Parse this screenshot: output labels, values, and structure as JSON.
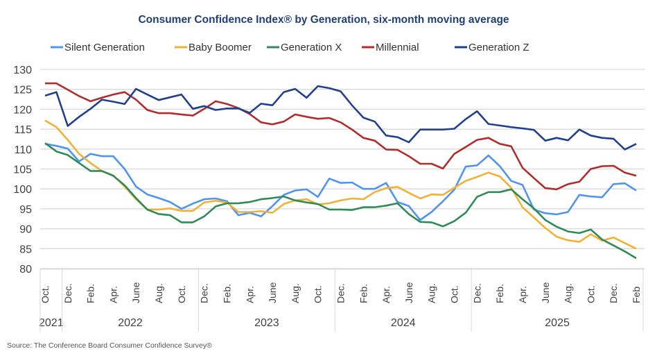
{
  "chart_data": {
    "type": "line",
    "title": "Consumer Confidence Index® by Generation, six-month moving average",
    "xlabel": "",
    "ylabel": "",
    "ylim": [
      80,
      130
    ],
    "yticks": [
      80,
      85,
      90,
      95,
      100,
      105,
      110,
      115,
      120,
      125,
      130
    ],
    "grid": true,
    "legend_position": "top",
    "x_tick_labels": [
      "Oct.",
      "Dec.",
      "Feb.",
      "Apr.",
      "June",
      "Aug.",
      "Oct.",
      "Dec.",
      "Feb.",
      "Apr.",
      "June",
      "Aug.",
      "Oct.",
      "Dec.",
      "Feb.",
      "Apr.",
      "June",
      "Aug.",
      "Oct.",
      "Dec.",
      "Feb.",
      "Apr.",
      "June",
      "Aug.",
      "Oct.",
      "Dec.",
      "Feb"
    ],
    "year_groups": [
      {
        "label": "2021",
        "start": 0,
        "end": 1
      },
      {
        "label": "2022",
        "start": 2,
        "end": 13
      },
      {
        "label": "2023",
        "start": 14,
        "end": 25
      },
      {
        "label": "2024",
        "start": 26,
        "end": 37
      },
      {
        "label": "2025",
        "start": 38,
        "end": 52
      }
    ],
    "series": [
      {
        "name": "Silent Generation",
        "color": "#4f94f0",
        "values": [
          111.3,
          110.8,
          110.1,
          106.9,
          108.8,
          108.2,
          108.2,
          105.0,
          100.6,
          98.6,
          97.7,
          96.7,
          95.0,
          96.3,
          97.4,
          97.6,
          96.9,
          93.4,
          94.0,
          93.1,
          95.7,
          98.5,
          99.6,
          99.9,
          98.0,
          102.6,
          101.5,
          101.6,
          100.0,
          100.0,
          101.5,
          96.7,
          95.7,
          92.2,
          94.2,
          96.9,
          99.8,
          105.6,
          105.9,
          108.4,
          105.7,
          102.0,
          101.0,
          94.8,
          93.9,
          93.6,
          94.2,
          98.5,
          98.1,
          97.9,
          101.2,
          101.4,
          99.6
        ]
      },
      {
        "name": "Baby Boomer",
        "color": "#f2b134",
        "values": [
          117.2,
          115.5,
          112.3,
          108.8,
          106.5,
          104.5,
          103.4,
          100.6,
          97.4,
          94.8,
          94.8,
          95.1,
          94.5,
          94.5,
          96.6,
          97.0,
          96.6,
          94.2,
          94.2,
          94.4,
          94.0,
          96.2,
          97.1,
          97.4,
          96.1,
          96.4,
          97.1,
          97.6,
          97.4,
          99.2,
          100.2,
          100.5,
          99.0,
          97.6,
          98.6,
          98.5,
          100.3,
          102.0,
          103.0,
          104.1,
          103.1,
          100.3,
          95.4,
          92.8,
          90.2,
          88.0,
          87.1,
          86.7,
          88.6,
          87.0,
          87.8,
          86.4,
          85.0
        ]
      },
      {
        "name": "Generation X",
        "color": "#2e8b57",
        "values": [
          111.5,
          109.4,
          108.5,
          106.5,
          104.5,
          104.5,
          103.3,
          100.9,
          97.7,
          94.8,
          93.7,
          93.4,
          91.6,
          91.6,
          93.1,
          95.6,
          96.4,
          96.4,
          96.7,
          97.4,
          97.7,
          98.1,
          97.1,
          96.6,
          96.2,
          94.8,
          94.8,
          94.7,
          95.4,
          95.4,
          95.8,
          96.4,
          93.7,
          91.7,
          91.6,
          90.6,
          91.9,
          94.0,
          98.0,
          99.2,
          99.2,
          99.9,
          97.4,
          95.1,
          92.2,
          90.5,
          89.3,
          88.9,
          89.8,
          87.3,
          85.8,
          84.3,
          82.6
        ]
      },
      {
        "name": "Millennial",
        "color": "#b22c2c",
        "values": [
          126.5,
          126.5,
          124.9,
          123.3,
          122.0,
          122.9,
          123.7,
          124.3,
          122.4,
          119.8,
          119.0,
          119.0,
          118.7,
          118.4,
          120.1,
          122.0,
          121.3,
          120.3,
          118.8,
          116.7,
          116.2,
          116.9,
          118.7,
          118.1,
          117.6,
          117.8,
          116.7,
          114.9,
          112.8,
          112.1,
          109.9,
          109.8,
          108.2,
          106.3,
          106.3,
          105.1,
          108.8,
          110.5,
          112.3,
          112.8,
          111.3,
          110.7,
          105.3,
          102.7,
          100.2,
          99.9,
          101.2,
          101.8,
          105.0,
          105.7,
          105.8,
          104.1,
          103.3
        ]
      },
      {
        "name": "Generation Z",
        "color": "#1f3f8f",
        "values": [
          123.4,
          124.3,
          115.8,
          118.1,
          120.1,
          122.4,
          121.9,
          121.3,
          125.1,
          123.7,
          122.3,
          123.0,
          123.7,
          120.1,
          120.8,
          119.8,
          120.2,
          120.2,
          119.1,
          121.4,
          121.0,
          124.3,
          125.1,
          122.9,
          125.8,
          125.3,
          124.5,
          121.0,
          117.9,
          116.9,
          113.4,
          113.0,
          111.7,
          114.9,
          114.9,
          114.9,
          115.1,
          117.5,
          119.5,
          116.3,
          115.9,
          115.5,
          115.2,
          114.8,
          112.1,
          112.8,
          112.2,
          114.9,
          113.4,
          112.8,
          112.6,
          109.9,
          111.3
        ]
      }
    ],
    "source": "Source: The Conference Board Consumer Confidence Survey®"
  }
}
